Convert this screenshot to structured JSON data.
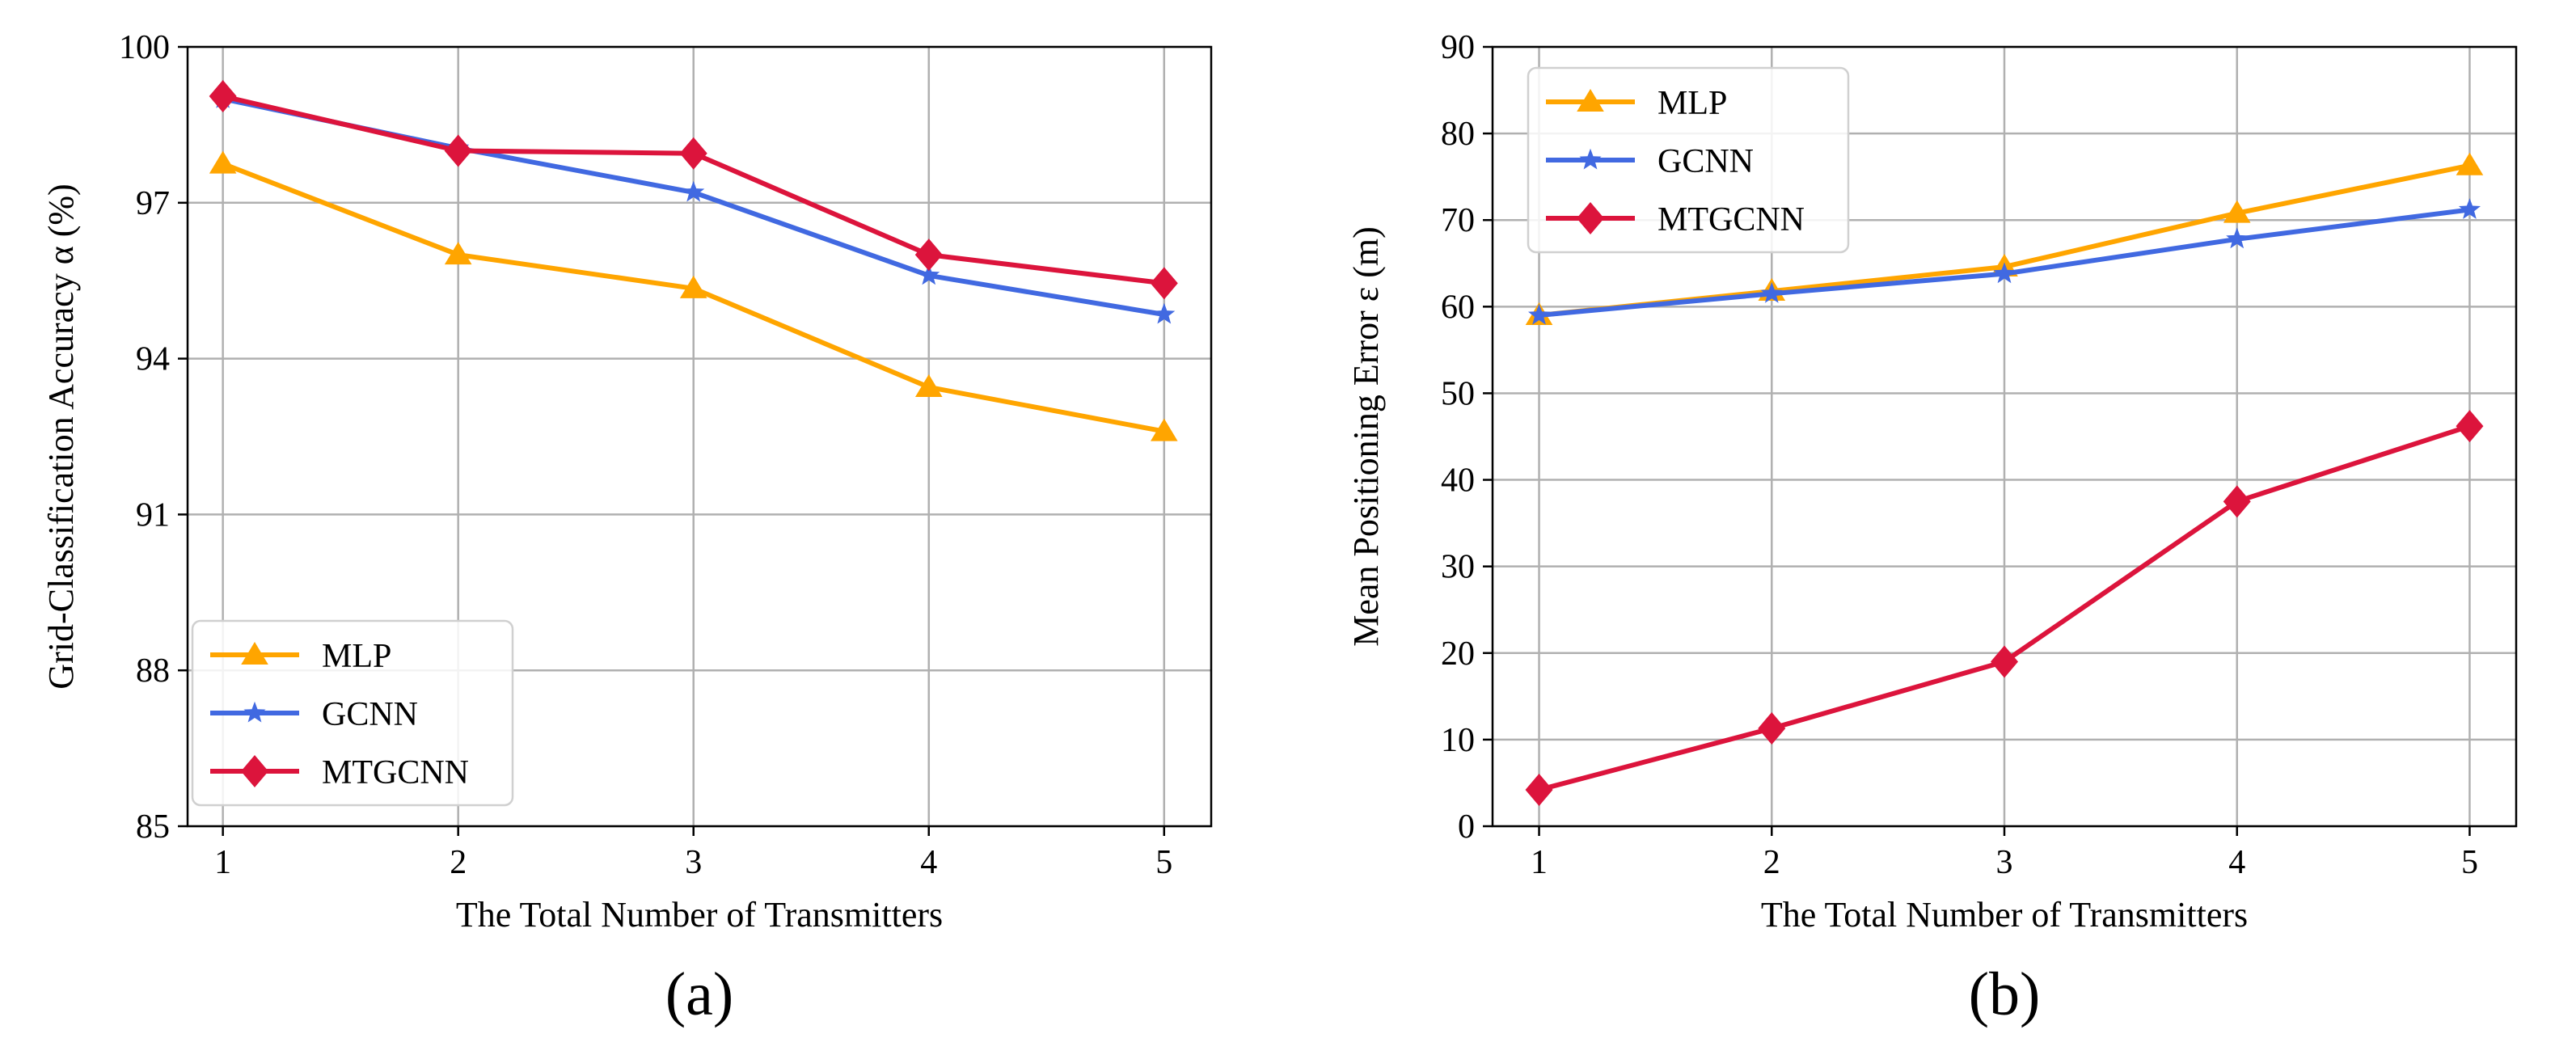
{
  "chart_data": [
    {
      "id": "a",
      "panel_label": "(a)",
      "type": "line",
      "title": "",
      "xlabel": "The Total Number of Transmitters",
      "ylabel": "Grid-Classification Accuracy α (%)",
      "x": [
        1,
        2,
        3,
        4,
        5
      ],
      "xlim": [
        0.85,
        5.2
      ],
      "ylim": [
        85,
        100
      ],
      "xticks": [
        1,
        2,
        3,
        4,
        5
      ],
      "yticks": [
        85,
        88,
        91,
        94,
        97,
        100
      ],
      "grid": true,
      "legend_position": "lower-left",
      "series": [
        {
          "name": "MLP",
          "color": "#FFA500",
          "marker": "triangle",
          "values": [
            97.75,
            96.0,
            95.35,
            93.45,
            92.6
          ]
        },
        {
          "name": "GCNN",
          "color": "#4169E1",
          "marker": "star",
          "values": [
            99.0,
            98.05,
            97.2,
            95.6,
            94.85
          ]
        },
        {
          "name": "MTGCNN",
          "color": "#DC143C",
          "marker": "diamond",
          "values": [
            99.05,
            98.0,
            97.95,
            96.0,
            95.45
          ]
        }
      ]
    },
    {
      "id": "b",
      "panel_label": "(b)",
      "type": "line",
      "title": "",
      "xlabel": "The Total Number of Transmitters",
      "ylabel": "Mean Positioning Error ε (m)",
      "x": [
        1,
        2,
        3,
        4,
        5
      ],
      "xlim": [
        0.8,
        5.2
      ],
      "ylim": [
        0,
        90
      ],
      "xticks": [
        1,
        2,
        3,
        4,
        5
      ],
      "yticks": [
        0,
        10,
        20,
        30,
        40,
        50,
        60,
        70,
        80,
        90
      ],
      "grid": true,
      "legend_position": "upper-left",
      "series": [
        {
          "name": "MLP",
          "color": "#FFA500",
          "marker": "triangle",
          "values": [
            59.0,
            61.8,
            64.6,
            70.8,
            76.3
          ]
        },
        {
          "name": "GCNN",
          "color": "#4169E1",
          "marker": "star",
          "values": [
            59.0,
            61.5,
            63.8,
            67.8,
            71.2
          ]
        },
        {
          "name": "MTGCNN",
          "color": "#DC143C",
          "marker": "diamond",
          "values": [
            4.2,
            11.3,
            19.0,
            37.5,
            46.2
          ]
        }
      ]
    }
  ]
}
